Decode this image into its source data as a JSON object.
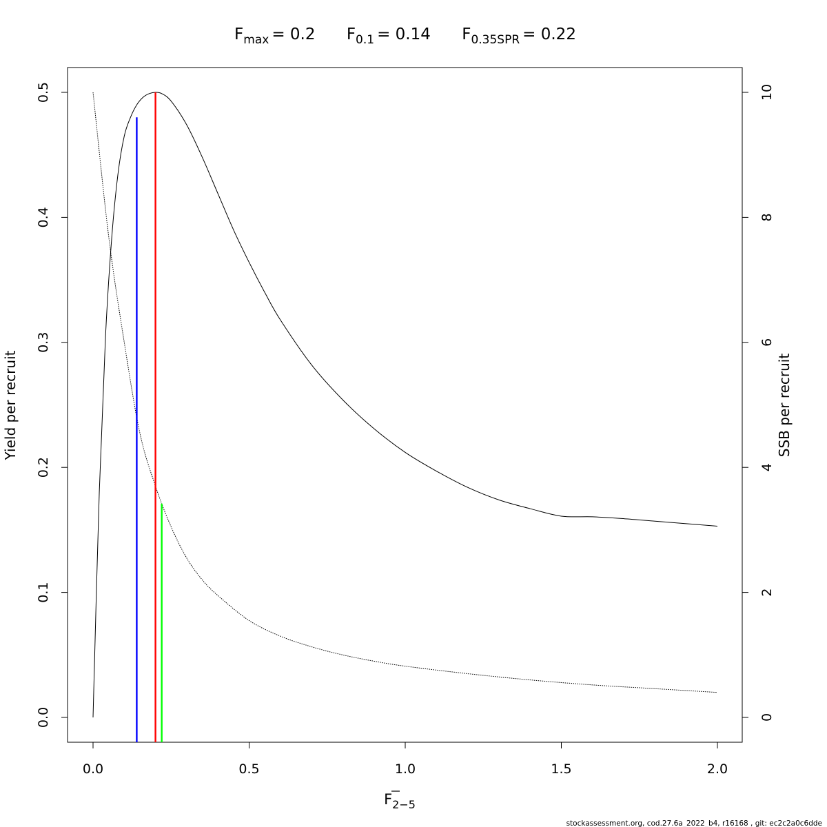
{
  "chart_data": {
    "type": "line",
    "title": {
      "parts": [
        {
          "symbol": "F",
          "sub": "max",
          "value": "= 0.2"
        },
        {
          "symbol": "F",
          "sub": "0.1",
          "value": "= 0.14"
        },
        {
          "symbol": "F",
          "sub": "0.35SPR",
          "value": "= 0.22"
        }
      ]
    },
    "xlabel": {
      "symbol": "F",
      "sub": "2−5"
    },
    "ylabel_left": "Yield per recruit",
    "ylabel_right": "SSB per recruit",
    "xlim": [
      0,
      2
    ],
    "ylim_left": [
      0,
      0.5
    ],
    "ylim_right": [
      0,
      10
    ],
    "x_ticks": [
      0,
      0.5,
      1,
      1.5,
      2
    ],
    "x_tick_labels": [
      "0.0",
      "0.5",
      "1.0",
      "1.5",
      "2.0"
    ],
    "y_left_ticks": [
      0,
      0.1,
      0.2,
      0.3,
      0.4,
      0.5
    ],
    "y_left_tick_labels": [
      "0.0",
      "0.1",
      "0.2",
      "0.3",
      "0.4",
      "0.5"
    ],
    "y_right_ticks": [
      0,
      2,
      4,
      6,
      8,
      10
    ],
    "y_right_tick_labels": [
      "0",
      "2",
      "4",
      "6",
      "8",
      "10"
    ],
    "series": [
      {
        "axis": "left",
        "color": "#000000",
        "dash": "solid",
        "x": [
          0,
          0.02,
          0.04,
          0.06,
          0.08,
          0.1,
          0.12,
          0.14,
          0.16,
          0.18,
          0.2,
          0.22,
          0.25,
          0.3,
          0.35,
          0.4,
          0.45,
          0.5,
          0.55,
          0.6,
          0.7,
          0.8,
          0.9,
          1.0,
          1.1,
          1.2,
          1.3,
          1.4,
          1.5,
          1.6,
          1.7,
          1.8,
          1.9,
          2.0
        ],
        "y": [
          0,
          0.18,
          0.305,
          0.384,
          0.435,
          0.465,
          0.48,
          0.49,
          0.496,
          0.499,
          0.5,
          0.499,
          0.493,
          0.474,
          0.448,
          0.419,
          0.39,
          0.364,
          0.34,
          0.318,
          0.282,
          0.254,
          0.231,
          0.212,
          0.197,
          0.184,
          0.174,
          0.167,
          0.161,
          0.1605,
          0.159,
          0.157,
          0.155,
          0.153
        ]
      },
      {
        "axis": "right",
        "color": "#000000",
        "dash": "dotted",
        "x": [
          0,
          0.05,
          0.1,
          0.15,
          0.2,
          0.25,
          0.3,
          0.35,
          0.4,
          0.5,
          0.6,
          0.7,
          0.8,
          0.9,
          1.0,
          1.2,
          1.4,
          1.6,
          1.8,
          2.0
        ],
        "y": [
          10.0,
          7.7,
          6.0,
          4.55,
          3.7,
          3.05,
          2.55,
          2.2,
          1.95,
          1.55,
          1.3,
          1.13,
          1.0,
          0.9,
          0.82,
          0.7,
          0.6,
          0.52,
          0.46,
          0.4
        ]
      }
    ],
    "reference_lines": [
      {
        "x": 0.14,
        "y_top": 0.48,
        "color": "#0000ff"
      },
      {
        "x": 0.2,
        "y_top": 0.5,
        "color": "#ff0000"
      },
      {
        "x": 0.22,
        "y_top": 0.171,
        "color": "#00ff00"
      }
    ]
  },
  "footer": "stockassessment.org, cod.27.6a_2022_b4, r16168 , git: ec2c2a0c6dde"
}
